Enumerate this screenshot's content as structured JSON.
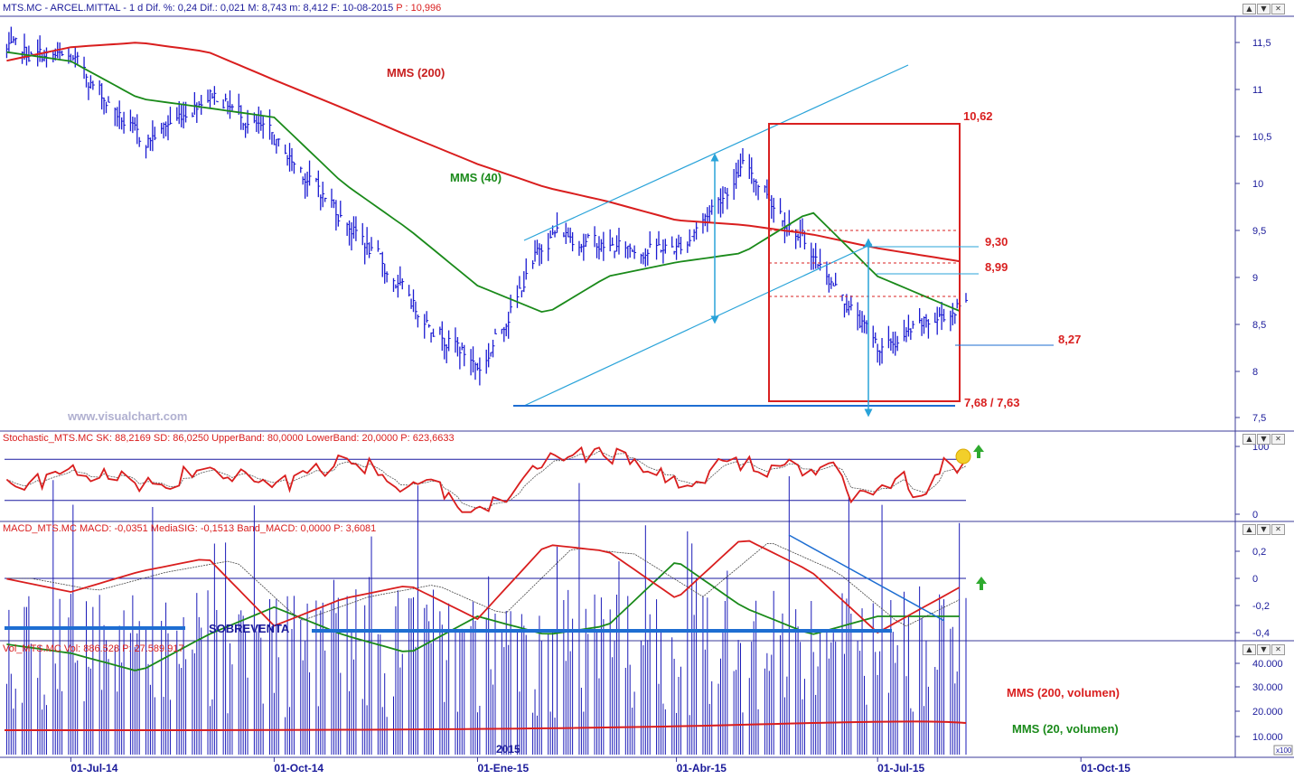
{
  "panels": {
    "price": {
      "header": {
        "symbol": "MTS.MC - ARCEL.MITTAL",
        "stats": " - 1 d  Dif. %: 0,24  Dif.: 0,021  M: 8,743  m: 8,412  F: 10-08-2015",
        "last": " P : 10,996"
      },
      "watermark": "www.visualchart.com",
      "labels": {
        "mms200": "MMS (200)",
        "mms40": "MMS (40)",
        "r1062": "10,62",
        "r930": "9,30",
        "r899": "8,99",
        "r827": "8,27",
        "r768": "7,68 / 7,63"
      },
      "yticks": [
        "11,5",
        "11",
        "10,5",
        "10",
        "9,5",
        "9",
        "8,5",
        "8",
        "7,5"
      ]
    },
    "stoch": {
      "header": "Stochastic_MTS.MC SK: 88,2169  SD: 86,0250  UpperBand: 80,0000  LowerBand: 20,0000  P: 623,6633",
      "yticks": [
        "100",
        "0"
      ]
    },
    "macd": {
      "header": "MACD_MTS.MC MACD: -0,0351  MediaSIG: -0,1513  Band_MACD: 0,0000  P: 3,6081",
      "label": "SOBREVENTA",
      "yticks": [
        "0,2",
        "0",
        "-0,2",
        "-0,4"
      ]
    },
    "vol": {
      "header": "Vol_MTS.MC Vol: 886.528  P: 27.589.917",
      "labels": {
        "mms200v": "MMS (200, volumen)",
        "mms20v": "MMS (20, volumen)",
        "year": "2015",
        "scale": "x100"
      },
      "yticks": [
        "40.000",
        "30.000",
        "20.000",
        "10.000"
      ]
    }
  },
  "xaxis": {
    "labels": [
      "01-Jul-14",
      "01-Oct-14",
      "01-Ene-15",
      "01-Abr-15",
      "01-Jul-15",
      "01-Oct-15"
    ]
  },
  "window_buttons": [
    "▲",
    "▼",
    "✕"
  ],
  "colors": {
    "price_bars": "#1b1bd2",
    "mms200": "#d91e1e",
    "mms40": "#1a8a1a",
    "channel": "#29a3d9",
    "levels": "#d92020",
    "band": "#1a1aa0"
  },
  "chart_data": [
    {
      "type": "line",
      "title": "MTS.MC - ARCEL.MITTAL",
      "x": [
        "2014-06-01",
        "2014-07-01",
        "2014-08-01",
        "2014-09-01",
        "2014-10-01",
        "2014-11-01",
        "2014-12-01",
        "2015-01-01",
        "2015-02-01",
        "2015-03-01",
        "2015-04-01",
        "2015-05-01",
        "2015-06-01",
        "2015-07-01",
        "2015-08-01"
      ],
      "series": [
        {
          "name": "",
          "values": [
            11.4,
            11.3,
            10.4,
            11.0,
            10.4,
            9.6,
            8.7,
            8.0,
            9.5,
            9.3,
            9.3,
            10.2,
            9.2,
            8.2,
            8.75
          ]
        },
        {
          "name": "MMS (40)",
          "values": [
            11.4,
            11.3,
            10.9,
            10.8,
            10.7,
            10.0,
            9.5,
            8.9,
            8.6,
            9.0,
            9.15,
            9.25,
            9.7,
            9.0,
            8.6
          ]
        },
        {
          "name": "MMS (200)",
          "values": [
            11.3,
            11.45,
            11.5,
            11.4,
            11.1,
            10.8,
            10.5,
            10.2,
            9.95,
            9.8,
            9.6,
            9.55,
            9.45,
            9.3,
            9.15
          ]
        }
      ],
      "annotations": [
        "10,62",
        "9,30",
        "8,99",
        "8,27",
        "7,68 / 7,63"
      ],
      "ylim": [
        7.4,
        11.8
      ]
    },
    {
      "type": "line",
      "title": "Stochastic_MTS.MC",
      "x": [
        "2014-06-01",
        "2014-07-01",
        "2014-08-01",
        "2014-09-01",
        "2014-10-01",
        "2014-11-01",
        "2014-12-01",
        "2015-01-01",
        "2015-02-01",
        "2015-03-01",
        "2015-04-01",
        "2015-05-01",
        "2015-06-01",
        "2015-07-01",
        "2015-08-01"
      ],
      "series": [
        {
          "name": "SK",
          "values": [
            30,
            60,
            40,
            75,
            25,
            90,
            35,
            20,
            85,
            90,
            40,
            80,
            55,
            20,
            88
          ]
        }
      ],
      "bands": [
        80,
        20
      ],
      "ylim": [
        0,
        100
      ]
    },
    {
      "type": "line",
      "title": "MACD_MTS.MC",
      "x": [
        "2014-06-01",
        "2014-07-01",
        "2014-08-01",
        "2014-09-01",
        "2014-10-01",
        "2014-11-01",
        "2014-12-01",
        "2015-01-01",
        "2015-02-01",
        "2015-03-01",
        "2015-04-01",
        "2015-05-01",
        "2015-06-01",
        "2015-07-01",
        "2015-08-01"
      ],
      "series": [
        {
          "name": "MACD",
          "values": [
            0.0,
            -0.1,
            0.05,
            0.15,
            -0.35,
            -0.15,
            -0.05,
            -0.3,
            0.25,
            0.2,
            -0.15,
            0.3,
            0.05,
            -0.4,
            -0.04
          ]
        }
      ],
      "ylim": [
        -0.45,
        0.3
      ]
    },
    {
      "type": "bar",
      "title": "Vol_MTS.MC",
      "x": [
        "2014-06-01",
        "2014-07-01",
        "2014-08-01",
        "2014-09-01",
        "2014-10-01",
        "2014-11-01",
        "2014-12-01",
        "2015-01-01",
        "2015-02-01",
        "2015-03-01",
        "2015-04-01",
        "2015-05-01",
        "2015-06-01",
        "2015-07-01",
        "2015-08-01"
      ],
      "series": [
        {
          "name": "MMS (20, volumen)",
          "values": [
            12000,
            11000,
            9000,
            13000,
            16000,
            13000,
            11000,
            15000,
            13000,
            14000,
            21000,
            16000,
            13000,
            15000,
            15000
          ]
        }
      ],
      "ylim": [
        0,
        45000
      ]
    }
  ]
}
